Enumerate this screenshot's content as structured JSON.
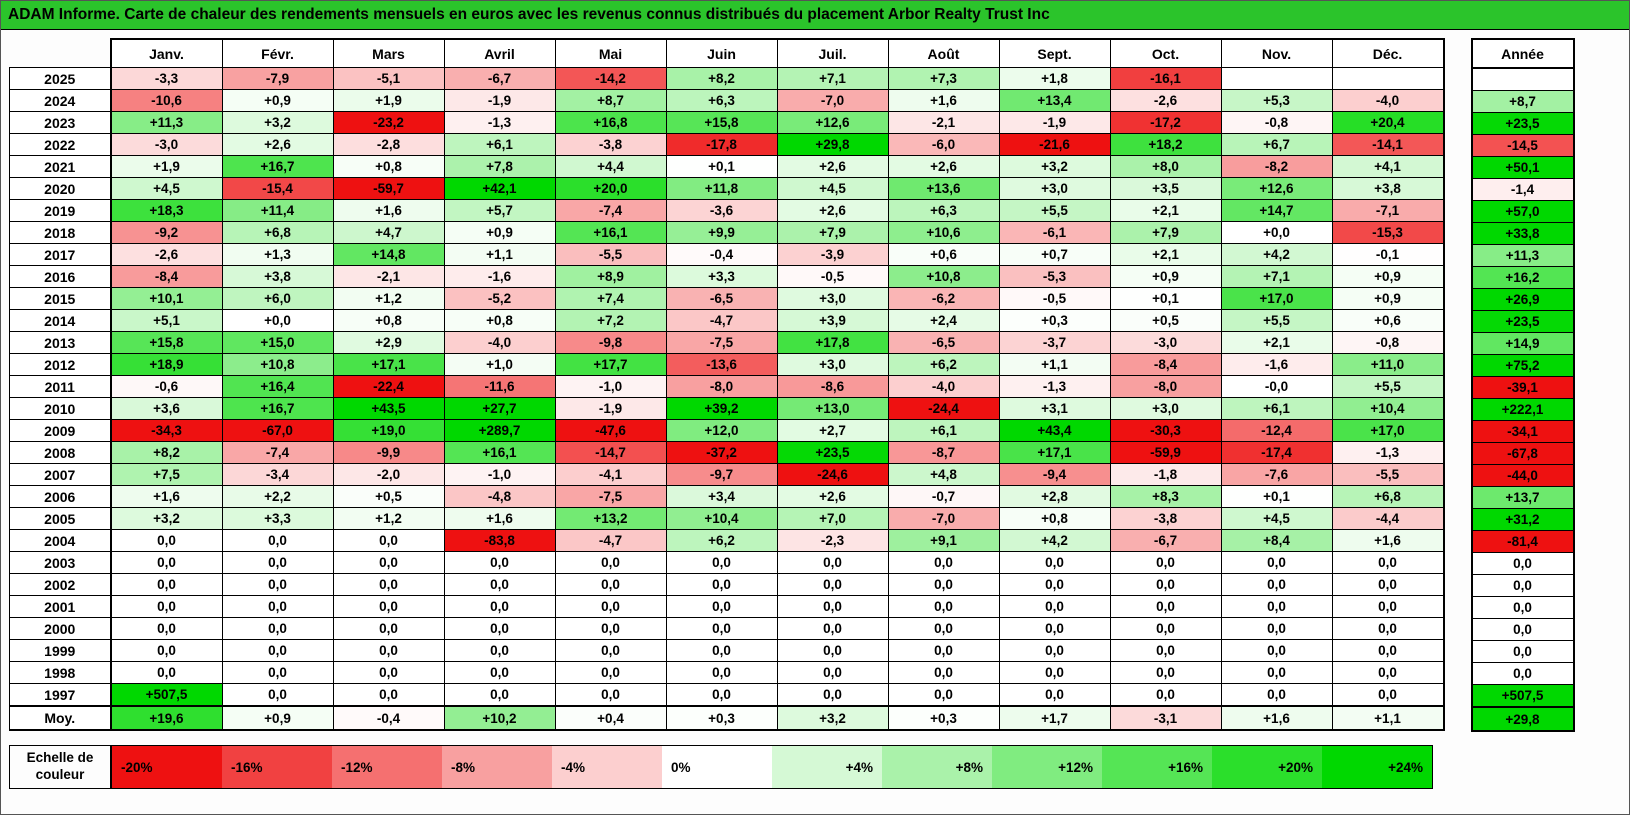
{
  "title": "ADAM Informe. Carte de chaleur des rendements mensuels en euros avec les revenus connus distribués du placement Arbor Realty Trust Inc",
  "table": {
    "month_headers": [
      "Janv.",
      "Févr.",
      "Mars",
      "Avril",
      "Mai",
      "Juin",
      "Juil.",
      "Août",
      "Sept.",
      "Oct.",
      "Nov.",
      "Déc."
    ],
    "annual_header": "Année",
    "avg_row_label": "Moy.",
    "rows": [
      {
        "label": "2025",
        "values": [
          "-3,3",
          "-7,9",
          "-5,1",
          "-6,7",
          "-14,2",
          "+8,2",
          "+7,1",
          "+7,3",
          "+1,8",
          "-16,1",
          "",
          ""
        ],
        "annee": ""
      },
      {
        "label": "2024",
        "values": [
          "-10,6",
          "+0,9",
          "+1,9",
          "-1,9",
          "+8,7",
          "+6,3",
          "-7,0",
          "+1,6",
          "+13,4",
          "-2,6",
          "+5,3",
          "-4,0"
        ],
        "annee": "+8,7"
      },
      {
        "label": "2023",
        "values": [
          "+11,3",
          "+3,2",
          "-23,2",
          "-1,3",
          "+16,8",
          "+15,8",
          "+12,6",
          "-2,1",
          "-1,9",
          "-17,2",
          "-0,8",
          "+20,4"
        ],
        "annee": "+23,5"
      },
      {
        "label": "2022",
        "values": [
          "-3,0",
          "+2,6",
          "-2,8",
          "+6,1",
          "-3,8",
          "-17,8",
          "+29,8",
          "-6,0",
          "-21,6",
          "+18,2",
          "+6,7",
          "-14,1"
        ],
        "annee": "-14,5"
      },
      {
        "label": "2021",
        "values": [
          "+1,9",
          "+16,7",
          "+0,8",
          "+7,8",
          "+4,4",
          "+0,1",
          "+2,6",
          "+2,6",
          "+3,2",
          "+8,0",
          "-8,2",
          "+4,1"
        ],
        "annee": "+50,1"
      },
      {
        "label": "2020",
        "values": [
          "+4,5",
          "-15,4",
          "-59,7",
          "+42,1",
          "+20,0",
          "+11,8",
          "+4,5",
          "+13,6",
          "+3,0",
          "+3,5",
          "+12,6",
          "+3,8"
        ],
        "annee": "-1,4"
      },
      {
        "label": "2019",
        "values": [
          "+18,3",
          "+11,4",
          "+1,6",
          "+5,7",
          "-7,4",
          "-3,6",
          "+2,6",
          "+6,3",
          "+5,5",
          "+2,1",
          "+14,7",
          "-7,1"
        ],
        "annee": "+57,0"
      },
      {
        "label": "2018",
        "values": [
          "-9,2",
          "+6,8",
          "+4,7",
          "+0,9",
          "+16,1",
          "+9,9",
          "+7,9",
          "+10,6",
          "-6,1",
          "+7,9",
          "+0,0",
          "-15,3"
        ],
        "annee": "+33,8"
      },
      {
        "label": "2017",
        "values": [
          "-2,6",
          "+1,3",
          "+14,8",
          "+1,1",
          "-5,5",
          "-0,4",
          "-3,9",
          "+0,6",
          "+0,7",
          "+2,1",
          "+4,2",
          "-0,1"
        ],
        "annee": "+11,3"
      },
      {
        "label": "2016",
        "values": [
          "-8,4",
          "+3,8",
          "-2,1",
          "-1,6",
          "+8,9",
          "+3,3",
          "-0,5",
          "+10,8",
          "-5,3",
          "+0,9",
          "+7,1",
          "+0,9"
        ],
        "annee": "+16,2"
      },
      {
        "label": "2015",
        "values": [
          "+10,1",
          "+6,0",
          "+1,2",
          "-5,2",
          "+7,4",
          "-6,5",
          "+3,0",
          "-6,2",
          "-0,5",
          "+0,1",
          "+17,0",
          "+0,9"
        ],
        "annee": "+26,9"
      },
      {
        "label": "2014",
        "values": [
          "+5,1",
          "+0,0",
          "+0,8",
          "+0,8",
          "+7,2",
          "-4,7",
          "+3,9",
          "+2,4",
          "+0,3",
          "+0,5",
          "+5,5",
          "+0,6"
        ],
        "annee": "+23,5"
      },
      {
        "label": "2013",
        "values": [
          "+15,8",
          "+15,0",
          "+2,9",
          "-4,0",
          "-9,8",
          "-7,5",
          "+17,8",
          "-6,5",
          "-3,7",
          "-3,0",
          "+2,1",
          "-0,8"
        ],
        "annee": "+14,9"
      },
      {
        "label": "2012",
        "values": [
          "+18,9",
          "+10,8",
          "+17,1",
          "+1,0",
          "+17,7",
          "-13,6",
          "+3,0",
          "+6,2",
          "+1,1",
          "-8,4",
          "-1,6",
          "+11,0"
        ],
        "annee": "+75,2"
      },
      {
        "label": "2011",
        "values": [
          "-0,6",
          "+16,4",
          "-22,4",
          "-11,6",
          "-1,0",
          "-8,0",
          "-8,6",
          "-4,0",
          "-1,3",
          "-8,0",
          "-0,0",
          "+5,5"
        ],
        "annee": "-39,1"
      },
      {
        "label": "2010",
        "values": [
          "+3,6",
          "+16,7",
          "+43,5",
          "+27,7",
          "-1,9",
          "+39,2",
          "+13,0",
          "-24,4",
          "+3,1",
          "+3,0",
          "+6,1",
          "+10,4"
        ],
        "annee": "+222,1"
      },
      {
        "label": "2009",
        "values": [
          "-34,3",
          "-67,0",
          "+19,0",
          "+289,7",
          "-47,6",
          "+12,0",
          "+2,7",
          "+6,1",
          "+43,4",
          "-30,3",
          "-12,4",
          "+17,0"
        ],
        "annee": "-34,1"
      },
      {
        "label": "2008",
        "values": [
          "+8,2",
          "-7,4",
          "-9,9",
          "+16,1",
          "-14,7",
          "-37,2",
          "+23,5",
          "-8,7",
          "+17,1",
          "-59,9",
          "-17,4",
          "-1,3"
        ],
        "annee": "-67,8"
      },
      {
        "label": "2007",
        "values": [
          "+7,5",
          "-3,4",
          "-2,0",
          "-1,0",
          "-4,1",
          "-9,7",
          "-24,6",
          "+4,8",
          "-9,4",
          "-1,8",
          "-7,6",
          "-5,5"
        ],
        "annee": "-44,0"
      },
      {
        "label": "2006",
        "values": [
          "+1,6",
          "+2,2",
          "+0,5",
          "-4,8",
          "-7,5",
          "+3,4",
          "+2,6",
          "-0,7",
          "+2,8",
          "+8,3",
          "+0,1",
          "+6,8"
        ],
        "annee": "+13,7"
      },
      {
        "label": "2005",
        "values": [
          "+3,2",
          "+3,3",
          "+1,2",
          "+1,6",
          "+13,2",
          "+10,4",
          "+7,0",
          "-7,0",
          "+0,8",
          "-3,8",
          "+4,5",
          "-4,4"
        ],
        "annee": "+31,2"
      },
      {
        "label": "2004",
        "values": [
          "0,0",
          "0,0",
          "0,0",
          "-83,8",
          "-4,7",
          "+6,2",
          "-2,3",
          "+9,1",
          "+4,2",
          "-6,7",
          "+8,4",
          "+1,6"
        ],
        "annee": "-81,4"
      },
      {
        "label": "2003",
        "values": [
          "0,0",
          "0,0",
          "0,0",
          "0,0",
          "0,0",
          "0,0",
          "0,0",
          "0,0",
          "0,0",
          "0,0",
          "0,0",
          "0,0"
        ],
        "annee": "0,0"
      },
      {
        "label": "2002",
        "values": [
          "0,0",
          "0,0",
          "0,0",
          "0,0",
          "0,0",
          "0,0",
          "0,0",
          "0,0",
          "0,0",
          "0,0",
          "0,0",
          "0,0"
        ],
        "annee": "0,0"
      },
      {
        "label": "2001",
        "values": [
          "0,0",
          "0,0",
          "0,0",
          "0,0",
          "0,0",
          "0,0",
          "0,0",
          "0,0",
          "0,0",
          "0,0",
          "0,0",
          "0,0"
        ],
        "annee": "0,0"
      },
      {
        "label": "2000",
        "values": [
          "0,0",
          "0,0",
          "0,0",
          "0,0",
          "0,0",
          "0,0",
          "0,0",
          "0,0",
          "0,0",
          "0,0",
          "0,0",
          "0,0"
        ],
        "annee": "0,0"
      },
      {
        "label": "1999",
        "values": [
          "0,0",
          "0,0",
          "0,0",
          "0,0",
          "0,0",
          "0,0",
          "0,0",
          "0,0",
          "0,0",
          "0,0",
          "0,0",
          "0,0"
        ],
        "annee": "0,0"
      },
      {
        "label": "1998",
        "values": [
          "0,0",
          "0,0",
          "0,0",
          "0,0",
          "0,0",
          "0,0",
          "0,0",
          "0,0",
          "0,0",
          "0,0",
          "0,0",
          "0,0"
        ],
        "annee": "0,0"
      },
      {
        "label": "1997",
        "values": [
          "+507,5",
          "0,0",
          "0,0",
          "0,0",
          "0,0",
          "0,0",
          "0,0",
          "0,0",
          "0,0",
          "0,0",
          "0,0",
          "0,0"
        ],
        "annee": "+507,5"
      },
      {
        "label": "Moy.",
        "values": [
          "+19,6",
          "+0,9",
          "-0,4",
          "+10,2",
          "+0,4",
          "+0,3",
          "+3,2",
          "+0,3",
          "+1,7",
          "-3,1",
          "+1,6",
          "+1,1"
        ],
        "annee": "+29,8"
      }
    ]
  },
  "legend": {
    "label": "Echelle de couleur",
    "stops": [
      "-20%",
      "-16%",
      "-12%",
      "-8%",
      "-4%",
      "0%",
      "+4%",
      "+8%",
      "+12%",
      "+16%",
      "+20%",
      "+24%"
    ],
    "scale": {
      "min": -20,
      "max": 24
    }
  },
  "colors": {
    "title_bar_green": "#2bc42b",
    "negative_full": "#ee1111",
    "positive_full": "#00d800",
    "zero": "#ffffff",
    "text": "#000000"
  },
  "chart_data": {
    "type": "heatmap",
    "title": "ADAM Informe. Carte de chaleur des rendements mensuels en euros avec les revenus connus distribués du placement Arbor Realty Trust Inc",
    "unit": "%",
    "columns": [
      "Janv.",
      "Févr.",
      "Mars",
      "Avril",
      "Mai",
      "Juin",
      "Juil.",
      "Août",
      "Sept.",
      "Oct.",
      "Nov.",
      "Déc."
    ],
    "rows": [
      "2025",
      "2024",
      "2023",
      "2022",
      "2021",
      "2020",
      "2019",
      "2018",
      "2017",
      "2016",
      "2015",
      "2014",
      "2013",
      "2012",
      "2011",
      "2010",
      "2009",
      "2008",
      "2007",
      "2006",
      "2005",
      "2004",
      "2003",
      "2002",
      "2001",
      "2000",
      "1999",
      "1998",
      "1997",
      "Moy."
    ],
    "values": [
      [
        -3.3,
        -7.9,
        -5.1,
        -6.7,
        -14.2,
        8.2,
        7.1,
        7.3,
        1.8,
        -16.1,
        null,
        null
      ],
      [
        -10.6,
        0.9,
        1.9,
        -1.9,
        8.7,
        6.3,
        -7.0,
        1.6,
        13.4,
        -2.6,
        5.3,
        -4.0
      ],
      [
        11.3,
        3.2,
        -23.2,
        -1.3,
        16.8,
        15.8,
        12.6,
        -2.1,
        -1.9,
        -17.2,
        -0.8,
        20.4
      ],
      [
        -3.0,
        2.6,
        -2.8,
        6.1,
        -3.8,
        -17.8,
        29.8,
        -6.0,
        -21.6,
        18.2,
        6.7,
        -14.1
      ],
      [
        1.9,
        16.7,
        0.8,
        7.8,
        4.4,
        0.1,
        2.6,
        2.6,
        3.2,
        8.0,
        -8.2,
        4.1
      ],
      [
        4.5,
        -15.4,
        -59.7,
        42.1,
        20.0,
        11.8,
        4.5,
        13.6,
        3.0,
        3.5,
        12.6,
        3.8
      ],
      [
        18.3,
        11.4,
        1.6,
        5.7,
        -7.4,
        -3.6,
        2.6,
        6.3,
        5.5,
        2.1,
        14.7,
        -7.1
      ],
      [
        -9.2,
        6.8,
        4.7,
        0.9,
        16.1,
        9.9,
        7.9,
        10.6,
        -6.1,
        7.9,
        0.0,
        -15.3
      ],
      [
        -2.6,
        1.3,
        14.8,
        1.1,
        -5.5,
        -0.4,
        -3.9,
        0.6,
        0.7,
        2.1,
        4.2,
        -0.1
      ],
      [
        -8.4,
        3.8,
        -2.1,
        -1.6,
        8.9,
        3.3,
        -0.5,
        10.8,
        -5.3,
        0.9,
        7.1,
        0.9
      ],
      [
        10.1,
        6.0,
        1.2,
        -5.2,
        7.4,
        -6.5,
        3.0,
        -6.2,
        -0.5,
        0.1,
        17.0,
        0.9
      ],
      [
        5.1,
        0.0,
        0.8,
        0.8,
        7.2,
        -4.7,
        3.9,
        2.4,
        0.3,
        0.5,
        5.5,
        0.6
      ],
      [
        15.8,
        15.0,
        2.9,
        -4.0,
        -9.8,
        -7.5,
        17.8,
        -6.5,
        -3.7,
        -3.0,
        2.1,
        -0.8
      ],
      [
        18.9,
        10.8,
        17.1,
        1.0,
        17.7,
        -13.6,
        3.0,
        6.2,
        1.1,
        -8.4,
        -1.6,
        11.0
      ],
      [
        -0.6,
        16.4,
        -22.4,
        -11.6,
        -1.0,
        -8.0,
        -8.6,
        -4.0,
        -1.3,
        -8.0,
        -0.0,
        5.5
      ],
      [
        3.6,
        16.7,
        43.5,
        27.7,
        -1.9,
        39.2,
        13.0,
        -24.4,
        3.1,
        3.0,
        6.1,
        10.4
      ],
      [
        -34.3,
        -67.0,
        19.0,
        289.7,
        -47.6,
        12.0,
        2.7,
        6.1,
        43.4,
        -30.3,
        -12.4,
        17.0
      ],
      [
        8.2,
        -7.4,
        -9.9,
        16.1,
        -14.7,
        -37.2,
        23.5,
        -8.7,
        17.1,
        -59.9,
        -17.4,
        -1.3
      ],
      [
        7.5,
        -3.4,
        -2.0,
        -1.0,
        -4.1,
        -9.7,
        -24.6,
        4.8,
        -9.4,
        -1.8,
        -7.6,
        -5.5
      ],
      [
        1.6,
        2.2,
        0.5,
        -4.8,
        -7.5,
        3.4,
        2.6,
        -0.7,
        2.8,
        8.3,
        0.1,
        6.8
      ],
      [
        3.2,
        3.3,
        1.2,
        1.6,
        13.2,
        10.4,
        7.0,
        -7.0,
        0.8,
        -3.8,
        4.5,
        -4.4
      ],
      [
        0,
        0,
        0,
        -83.8,
        -4.7,
        6.2,
        -2.3,
        9.1,
        4.2,
        -6.7,
        8.4,
        1.6
      ],
      [
        0,
        0,
        0,
        0,
        0,
        0,
        0,
        0,
        0,
        0,
        0,
        0
      ],
      [
        0,
        0,
        0,
        0,
        0,
        0,
        0,
        0,
        0,
        0,
        0,
        0
      ],
      [
        0,
        0,
        0,
        0,
        0,
        0,
        0,
        0,
        0,
        0,
        0,
        0
      ],
      [
        0,
        0,
        0,
        0,
        0,
        0,
        0,
        0,
        0,
        0,
        0,
        0
      ],
      [
        0,
        0,
        0,
        0,
        0,
        0,
        0,
        0,
        0,
        0,
        0,
        0
      ],
      [
        0,
        0,
        0,
        0,
        0,
        0,
        0,
        0,
        0,
        0,
        0,
        0
      ],
      [
        507.5,
        0,
        0,
        0,
        0,
        0,
        0,
        0,
        0,
        0,
        0,
        0
      ],
      [
        19.6,
        0.9,
        -0.4,
        10.2,
        0.4,
        0.3,
        3.2,
        0.3,
        1.7,
        -3.1,
        1.6,
        1.1
      ]
    ],
    "annual_totals": [
      null,
      8.7,
      23.5,
      -14.5,
      50.1,
      -1.4,
      57.0,
      33.8,
      11.3,
      16.2,
      26.9,
      23.5,
      14.9,
      75.2,
      -39.1,
      222.1,
      -34.1,
      -67.8,
      -44.0,
      13.7,
      31.2,
      -81.4,
      0,
      0,
      0,
      0,
      0,
      0,
      507.5,
      29.8
    ],
    "color_scale": {
      "min_pct": -20,
      "max_pct": 24,
      "step_pct": 4,
      "negative_color": "red",
      "zero_color": "white",
      "positive_color": "green",
      "legend_position": "bottom"
    }
  }
}
